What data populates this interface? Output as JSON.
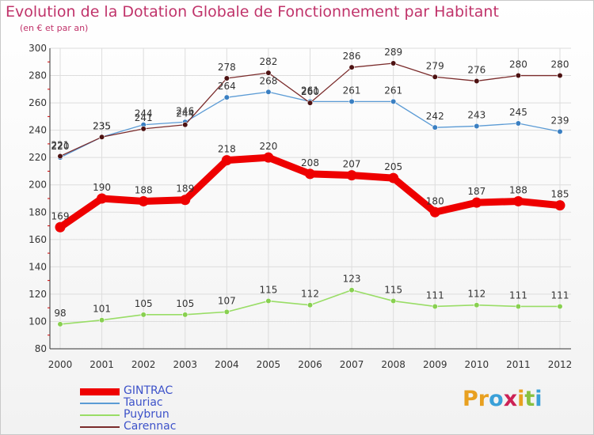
{
  "chart_data": {
    "type": "line",
    "title": "Evolution de la Dotation Globale de Fonctionnement par Habitant",
    "subtitle": "(en € et par an)",
    "x": [
      "2000",
      "2001",
      "2002",
      "2003",
      "2004",
      "2005",
      "2006",
      "2007",
      "2008",
      "2009",
      "2010",
      "2011",
      "2012"
    ],
    "ylim": [
      80,
      300
    ],
    "yticks": [
      80,
      100,
      120,
      140,
      160,
      180,
      200,
      220,
      240,
      260,
      280,
      300
    ],
    "grid": true,
    "legend_position": "bottom-left",
    "series": [
      {
        "name": "GINTRAC",
        "color": "#ee0000",
        "values": [
          169,
          190,
          188,
          189,
          218,
          220,
          208,
          207,
          205,
          180,
          187,
          188,
          185
        ]
      },
      {
        "name": "Tauriac",
        "color": "#5b9bd5",
        "values": [
          220,
          235,
          244,
          246,
          264,
          268,
          261,
          261,
          261,
          242,
          243,
          245,
          239
        ]
      },
      {
        "name": "Puybrun",
        "color": "#99dd66",
        "values": [
          98,
          101,
          105,
          105,
          107,
          115,
          112,
          123,
          115,
          111,
          112,
          111,
          111
        ]
      },
      {
        "name": "Carennac",
        "color": "#7a2b2b",
        "values": [
          221,
          235,
          241,
          244,
          278,
          282,
          260,
          286,
          289,
          279,
          276,
          280,
          280
        ]
      }
    ]
  },
  "logo_text": "Proxiti",
  "colors": {
    "title": "#c0336a",
    "legend_text": "#3d52c9",
    "grid": "#dddddd",
    "axis": "#333333"
  }
}
